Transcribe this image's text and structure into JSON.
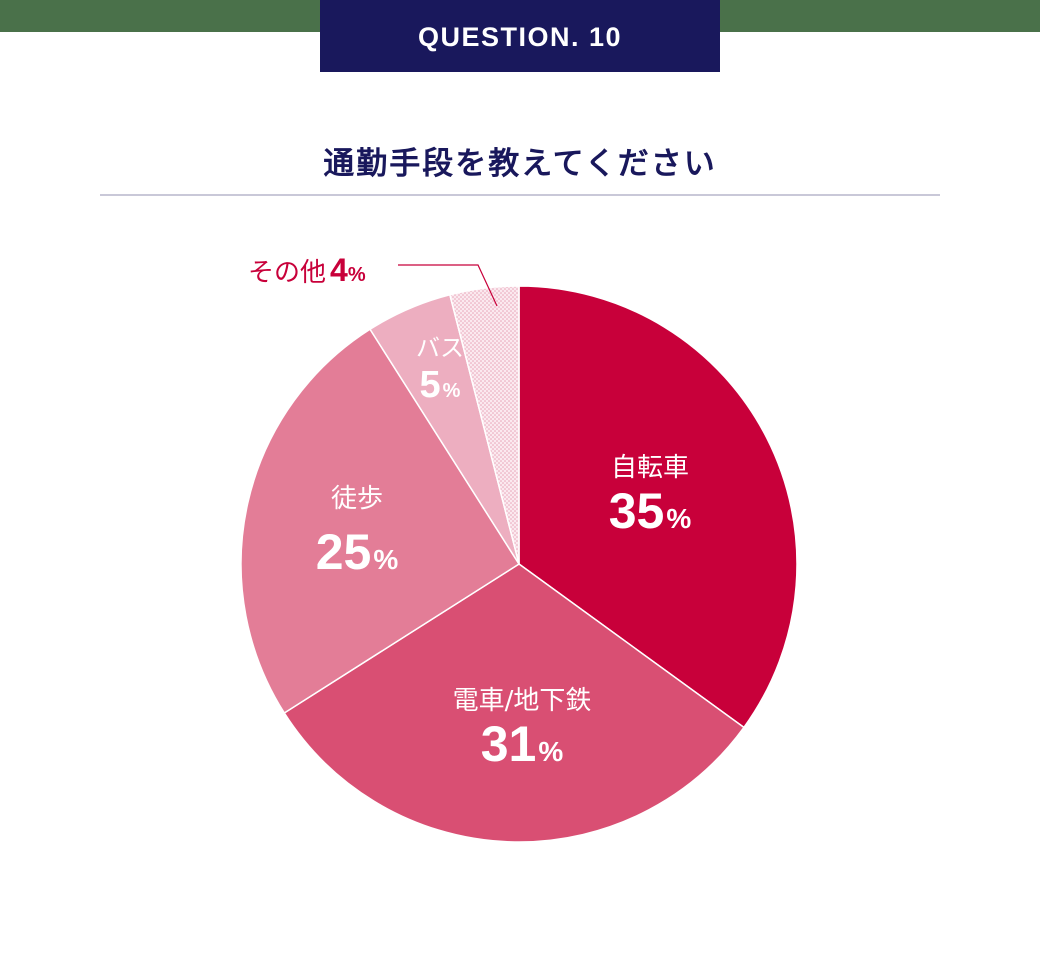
{
  "header": {
    "badge_label": "QUESTION. 10",
    "title": "通勤手段を教えてください",
    "colors": {
      "band": "#4a714a",
      "badge": "#19185c",
      "title": "#19185c",
      "divider": "#c9c8d8"
    }
  },
  "slices": [
    {
      "label": "自転車",
      "value": "35",
      "unit": "%",
      "color": "#c8003a"
    },
    {
      "label": "電車/地下鉄",
      "value": "31",
      "unit": "%",
      "color": "#d94f73"
    },
    {
      "label": "徒歩",
      "value": "25",
      "unit": "%",
      "color": "#e37d97"
    },
    {
      "label": "バス",
      "value": "5",
      "unit": "%",
      "color": "#edaec0"
    },
    {
      "label": "その他",
      "value": "4",
      "unit": "%",
      "color": "#f7dbe4"
    }
  ],
  "chart_data": {
    "type": "pie",
    "title": "通勤手段を教えてください",
    "subtitle": "QUESTION. 10",
    "categories": [
      "自転車",
      "電車/地下鉄",
      "徒歩",
      "バス",
      "その他"
    ],
    "values": [
      35,
      31,
      25,
      5,
      4
    ],
    "unit": "%",
    "colors": [
      "#c8003a",
      "#d94f73",
      "#e37d97",
      "#edaec0",
      "#f7dbe4"
    ],
    "start_angle": "12 o'clock, clockwise",
    "annotations": [
      {
        "text": "その他 4%",
        "position": "outside, leader line"
      }
    ],
    "legend": "none (labels inside slices)"
  }
}
